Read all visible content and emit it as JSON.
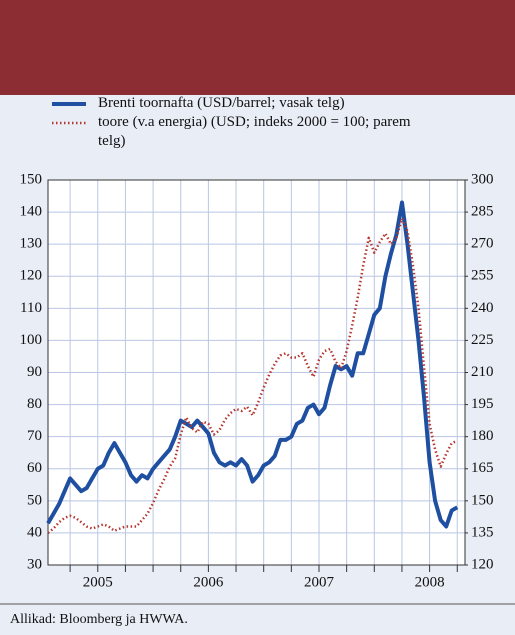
{
  "chart_data": {
    "type": "line",
    "source": "Allikad: Bloomberg ja HWWA.",
    "x": [
      2005.05,
      2005.1,
      2005.15,
      2005.2,
      2005.25,
      2005.3,
      2005.35,
      2005.4,
      2005.45,
      2005.5,
      2005.55,
      2005.6,
      2005.65,
      2005.7,
      2005.75,
      2005.8,
      2005.85,
      2005.9,
      2005.95,
      2006.0,
      2006.05,
      2006.1,
      2006.15,
      2006.2,
      2006.25,
      2006.3,
      2006.35,
      2006.4,
      2006.45,
      2006.5,
      2006.55,
      2006.6,
      2006.65,
      2006.7,
      2006.75,
      2006.8,
      2006.85,
      2006.9,
      2006.95,
      2007.0,
      2007.05,
      2007.1,
      2007.15,
      2007.2,
      2007.25,
      2007.3,
      2007.35,
      2007.4,
      2007.45,
      2007.5,
      2007.55,
      2007.6,
      2007.65,
      2007.7,
      2007.75,
      2007.8,
      2007.85,
      2007.9,
      2007.95,
      2008.0,
      2008.05,
      2008.1,
      2008.15,
      2008.2,
      2008.25,
      2008.3,
      2008.35,
      2008.4,
      2008.45,
      2008.5,
      2008.55,
      2008.6,
      2008.65,
      2008.7,
      2008.75
    ],
    "series": [
      {
        "name": "Brenti toornafta (USD/barrel; vasak telg)",
        "color": "#1f4fa0",
        "axis": "y",
        "values": [
          43,
          46,
          49,
          53,
          57,
          55,
          53,
          54,
          57,
          60,
          61,
          65,
          68,
          65,
          62,
          58,
          56,
          58,
          57,
          60,
          62,
          64,
          66,
          70,
          75,
          74,
          73,
          75,
          73,
          71,
          65,
          62,
          61,
          62,
          61,
          63,
          61,
          56,
          58,
          61,
          62,
          64,
          69,
          69,
          70,
          74,
          75,
          79,
          80,
          77,
          79,
          86,
          92,
          91,
          92,
          89,
          96,
          96,
          102,
          108,
          110,
          120,
          127,
          133,
          143,
          130,
          115,
          100,
          82,
          62,
          50,
          44,
          42,
          47,
          48
        ]
      },
      {
        "name": "toore (v.a energia) (USD; indeks 2000 = 100; parem telg)",
        "color": "#b5372f",
        "axis": "y2",
        "values": [
          135,
          137,
          140,
          142,
          143,
          142,
          140,
          138,
          137,
          138,
          139,
          138,
          136,
          137,
          138,
          138,
          138,
          141,
          144,
          149,
          155,
          160,
          166,
          170,
          181,
          189,
          184,
          182,
          187,
          186,
          181,
          183,
          188,
          191,
          193,
          192,
          194,
          190,
          196,
          203,
          209,
          214,
          218,
          219,
          217,
          217,
          219,
          213,
          208,
          216,
          220,
          221,
          215,
          212,
          220,
          232,
          245,
          260,
          273,
          266,
          271,
          275,
          270,
          273,
          282,
          276,
          260,
          240,
          212,
          186,
          174,
          166,
          172,
          177,
          178
        ]
      }
    ],
    "xlim": [
      2005.05,
      2008.82
    ],
    "xticks": [
      2005.25,
      2005.5,
      2005.75,
      2006,
      2006.25,
      2006.5,
      2006.75,
      2007,
      2007.25,
      2007.5,
      2007.75,
      2008,
      2008.25,
      2008.5,
      2008.75
    ],
    "xlabels": [
      {
        "value": 2005.5,
        "label": "2005"
      },
      {
        "value": 2006.5,
        "label": "2006"
      },
      {
        "value": 2007.5,
        "label": "2007"
      },
      {
        "value": 2008.5,
        "label": "2008"
      }
    ],
    "ylim": [
      30,
      150
    ],
    "yticks": [
      30,
      40,
      50,
      60,
      70,
      80,
      90,
      100,
      110,
      120,
      130,
      140,
      150
    ],
    "y2lim": [
      120,
      300
    ],
    "y2ticks": [
      120,
      135,
      150,
      165,
      180,
      195,
      210,
      225,
      240,
      255,
      270,
      285,
      300
    ],
    "grid": true
  }
}
